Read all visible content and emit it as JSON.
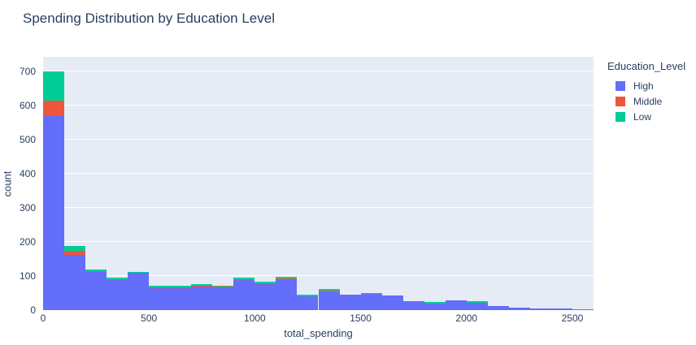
{
  "chart_data": {
    "type": "bar",
    "subtype": "stacked-histogram",
    "title": "Spending Distribution by Education Level",
    "xlabel": "total_spending",
    "ylabel": "count",
    "legend_title": "Education_Level",
    "legend_position": "right",
    "grid": "horizontal-only",
    "plot_bg": "#E5ECF6",
    "grid_color": "#FFFFFF",
    "text_color": "#2a3f5f",
    "bin_width": 100,
    "bin_starts": [
      0,
      100,
      200,
      300,
      400,
      500,
      600,
      700,
      800,
      900,
      1000,
      1100,
      1200,
      1300,
      1400,
      1500,
      1600,
      1700,
      1800,
      1900,
      2000,
      2100,
      2200,
      2300,
      2400,
      2500
    ],
    "series": [
      {
        "name": "High",
        "color": "#636EFA",
        "values": [
          570,
          163,
          114,
          90,
          109,
          65,
          65,
          70,
          66,
          90,
          78,
          93,
          41,
          56,
          45,
          47,
          44,
          26,
          20,
          28,
          21,
          12,
          7,
          4,
          4,
          3
        ]
      },
      {
        "name": "Middle",
        "color": "#EF553B",
        "values": [
          45,
          10,
          1,
          1,
          2,
          1,
          1,
          1,
          2,
          1,
          1,
          1,
          0,
          1,
          0,
          0,
          0,
          0,
          0,
          0,
          0,
          0,
          0,
          0,
          0,
          0
        ]
      },
      {
        "name": "Low",
        "color": "#00CC96",
        "values": [
          85,
          14,
          5,
          4,
          2,
          5,
          5,
          5,
          3,
          5,
          4,
          4,
          5,
          6,
          0,
          3,
          0,
          0,
          4,
          0,
          5,
          0,
          0,
          0,
          0,
          0
        ]
      }
    ],
    "xlim": [
      0,
      2600
    ],
    "ylim": [
      0,
      743
    ],
    "xticks": [
      0,
      500,
      1000,
      1500,
      2000,
      2500
    ],
    "yticks": [
      0,
      100,
      200,
      300,
      400,
      500,
      600,
      700
    ]
  }
}
